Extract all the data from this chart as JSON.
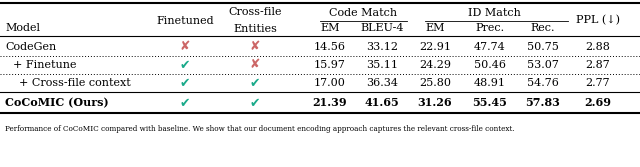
{
  "rows": [
    {
      "model": "CodeGen",
      "finetuned": false,
      "crossfile": false,
      "em": "14.56",
      "bleu": "33.12",
      "id_em": "22.91",
      "prec": "47.74",
      "rec": "50.75",
      "ppl": "2.88",
      "bold": false,
      "indent": 0
    },
    {
      "model": "+ Finetune",
      "finetuned": true,
      "crossfile": false,
      "em": "15.97",
      "bleu": "35.11",
      "id_em": "24.29",
      "prec": "50.46",
      "rec": "53.07",
      "ppl": "2.87",
      "bold": false,
      "indent": 1
    },
    {
      "model": "+ Cross-file context",
      "finetuned": true,
      "crossfile": true,
      "em": "17.00",
      "bleu": "36.34",
      "id_em": "25.80",
      "prec": "48.91",
      "rec": "54.76",
      "ppl": "2.77",
      "bold": false,
      "indent": 2
    },
    {
      "model": "CoCoMIC (Ours)",
      "finetuned": true,
      "crossfile": true,
      "em": "21.39",
      "bleu": "41.65",
      "id_em": "31.26",
      "prec": "55.45",
      "rec": "57.83",
      "ppl": "2.69",
      "bold": true,
      "indent": 0
    }
  ],
  "check_color": "#1aaa8a",
  "cross_color": "#cc6666",
  "background_color": "#ffffff",
  "font_size": 8.0,
  "caption": "Performance of CoCoMIC compared with baseline. We show that our document encoding approach captures the relevant cross-file context."
}
